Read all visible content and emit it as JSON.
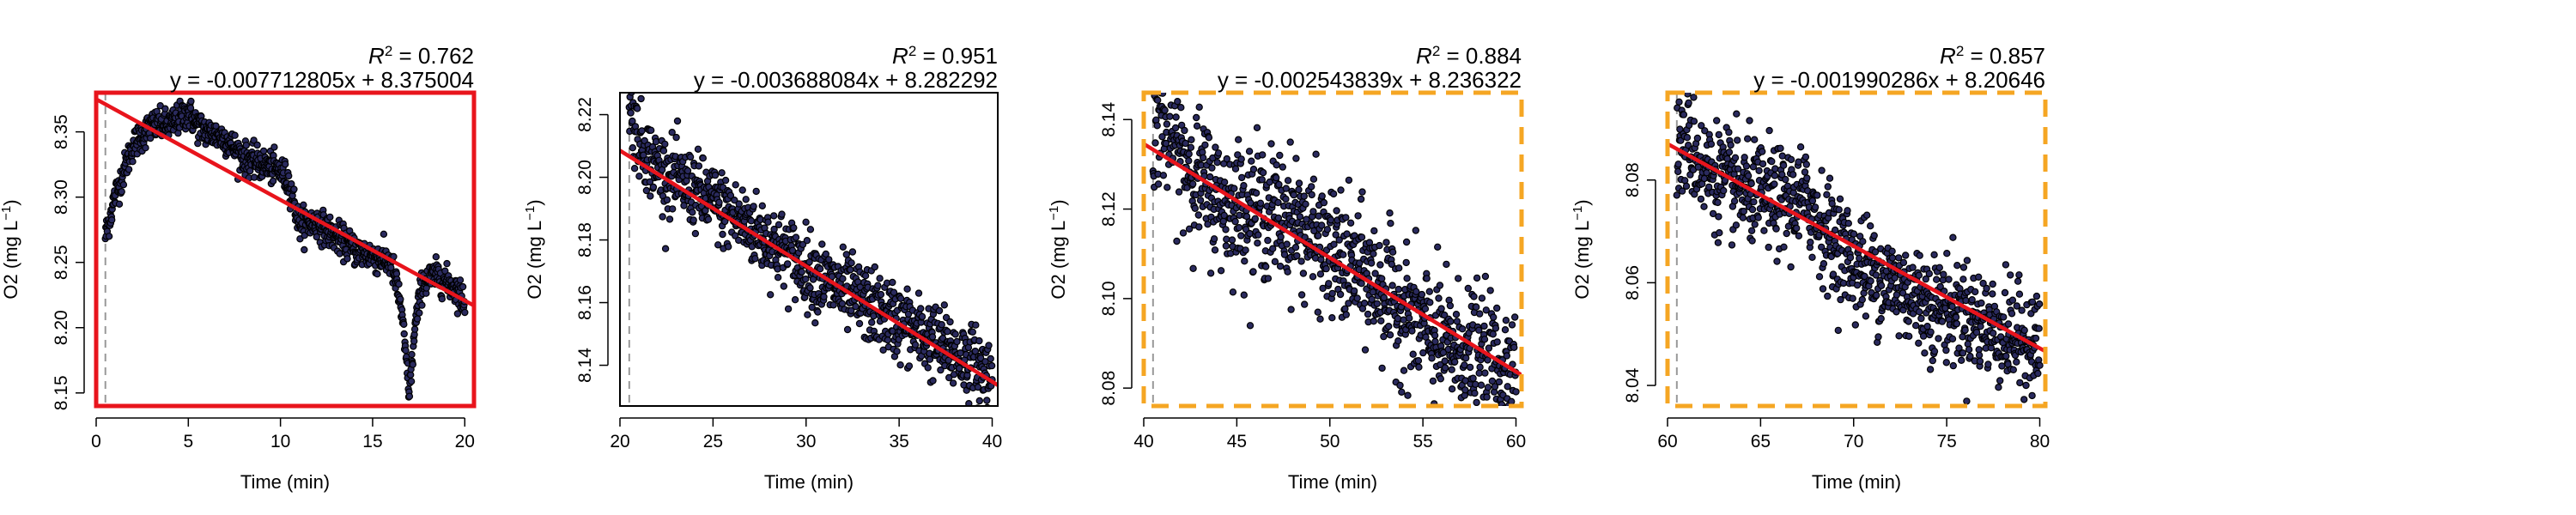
{
  "colors": {
    "fit_line": "#e8141c",
    "point_edge": "#000000",
    "point_fill": "#2a2a5e",
    "frame_red": "#e8141c",
    "frame_orange": "#f5a623",
    "frame_black": "#000000",
    "ref_line": "#999999"
  },
  "chart_data": [
    {
      "type": "scatter",
      "xlabel": "Time (min)",
      "ylabel_base": "O2 (mg L",
      "ylabel_exp": "−1",
      "ylabel_close": ")",
      "r2_label": "R",
      "r2_exp": "2",
      "r2_value": " = 0.762",
      "equation": "y = -0.007712805x + 8.375004",
      "frame": "red-solid",
      "xlim": [
        0,
        20.5
      ],
      "ylim": [
        8.14,
        8.38
      ],
      "xticks": [
        0,
        5,
        10,
        15,
        20
      ],
      "yticks": [
        8.15,
        8.2,
        8.25,
        8.3,
        8.35
      ],
      "ytick_labels": [
        "8.15",
        "8.20",
        "8.25",
        "8.30",
        "8.35"
      ],
      "ref_x": 0.5,
      "fit": {
        "slope": -0.007712805,
        "intercept": 8.375004
      },
      "trace": [
        [
          0.5,
          8.27
        ],
        [
          1,
          8.3
        ],
        [
          1.5,
          8.32
        ],
        [
          2,
          8.34
        ],
        [
          3,
          8.355
        ],
        [
          4,
          8.355
        ],
        [
          5,
          8.365
        ],
        [
          5.5,
          8.355
        ],
        [
          6,
          8.35
        ],
        [
          7,
          8.345
        ],
        [
          8,
          8.33
        ],
        [
          9,
          8.325
        ],
        [
          10,
          8.32
        ],
        [
          10.5,
          8.31
        ],
        [
          11,
          8.28
        ],
        [
          12,
          8.28
        ],
        [
          13,
          8.27
        ],
        [
          14,
          8.26
        ],
        [
          15,
          8.255
        ],
        [
          16,
          8.25
        ],
        [
          16.5,
          8.22
        ],
        [
          17,
          8.15
        ],
        [
          17.3,
          8.2
        ],
        [
          17.7,
          8.235
        ],
        [
          18.5,
          8.24
        ],
        [
          19.5,
          8.23
        ],
        [
          20,
          8.22
        ]
      ],
      "noise": 0.006
    },
    {
      "type": "scatter",
      "xlabel": "Time (min)",
      "ylabel_base": "O2 (mg L",
      "ylabel_exp": "−1",
      "ylabel_close": ")",
      "r2_label": "R",
      "r2_exp": "2",
      "r2_value": " = 0.951",
      "equation": "y = -0.003688084x + 8.282292",
      "frame": "black-solid",
      "xlim": [
        20,
        40.3
      ],
      "ylim": [
        8.127,
        8.227
      ],
      "xticks": [
        20,
        25,
        30,
        35,
        40
      ],
      "yticks": [
        8.14,
        8.16,
        8.18,
        8.2,
        8.22
      ],
      "ytick_labels": [
        "8.14",
        "8.16",
        "8.18",
        "8.20",
        "8.22"
      ],
      "ref_x": 20.5,
      "fit": {
        "slope": -0.003688084,
        "intercept": 8.282292
      },
      "trace": [
        [
          20.5,
          8.222
        ],
        [
          21,
          8.212
        ],
        [
          22,
          8.203
        ],
        [
          25,
          8.192
        ],
        [
          28,
          8.18
        ],
        [
          31,
          8.167
        ],
        [
          34,
          8.157
        ],
        [
          37,
          8.147
        ],
        [
          40,
          8.137
        ]
      ],
      "noise": 0.006
    },
    {
      "type": "scatter",
      "xlabel": "Time (min)",
      "ylabel_base": "O2 (mg L",
      "ylabel_exp": "−1",
      "ylabel_close": ")",
      "r2_label": "R",
      "r2_exp": "2",
      "r2_value": " = 0.884",
      "equation": "y = -0.002543839x + 8.236322",
      "frame": "orange-dashed",
      "xlim": [
        40,
        60.3
      ],
      "ylim": [
        8.076,
        8.146
      ],
      "xticks": [
        40,
        45,
        50,
        55,
        60
      ],
      "yticks": [
        8.08,
        8.1,
        8.12,
        8.14
      ],
      "ytick_labels": [
        "8.08",
        "8.10",
        "8.12",
        "8.14"
      ],
      "ref_x": 40.5,
      "fit": {
        "slope": -0.002543839,
        "intercept": 8.236322
      },
      "trace": [
        [
          40.5,
          8.138
        ],
        [
          41,
          8.14
        ],
        [
          42,
          8.132
        ],
        [
          44,
          8.122
        ],
        [
          46,
          8.12
        ],
        [
          48,
          8.118
        ],
        [
          50,
          8.11
        ],
        [
          52,
          8.105
        ],
        [
          54,
          8.097
        ],
        [
          56,
          8.09
        ],
        [
          58,
          8.087
        ],
        [
          60,
          8.085
        ]
      ],
      "noise": 0.007
    },
    {
      "type": "scatter",
      "xlabel": "Time (min)",
      "ylabel_base": "O2 (mg L",
      "ylabel_exp": "−1",
      "ylabel_close": ")",
      "r2_label": "R",
      "r2_exp": "2",
      "r2_value": " = 0.857",
      "equation": "y = -0.001990286x + 8.20646",
      "frame": "orange-dashed",
      "xlim": [
        60,
        80.3
      ],
      "ylim": [
        8.036,
        8.097
      ],
      "xticks": [
        60,
        65,
        70,
        75,
        80
      ],
      "yticks": [
        8.04,
        8.06,
        8.08
      ],
      "ytick_labels": [
        "8.04",
        "8.06",
        "8.08"
      ],
      "ref_x": 60.5,
      "fit": {
        "slope": -0.001990286,
        "intercept": 8.20646
      },
      "trace": [
        [
          60.5,
          8.085
        ],
        [
          61,
          8.088
        ],
        [
          62,
          8.082
        ],
        [
          64,
          8.078
        ],
        [
          66,
          8.076
        ],
        [
          67.5,
          8.076
        ],
        [
          68.5,
          8.07
        ],
        [
          70,
          8.064
        ],
        [
          72,
          8.06
        ],
        [
          74,
          8.056
        ],
        [
          76,
          8.054
        ],
        [
          78,
          8.05
        ],
        [
          80,
          8.048
        ]
      ],
      "noise": 0.005
    }
  ]
}
